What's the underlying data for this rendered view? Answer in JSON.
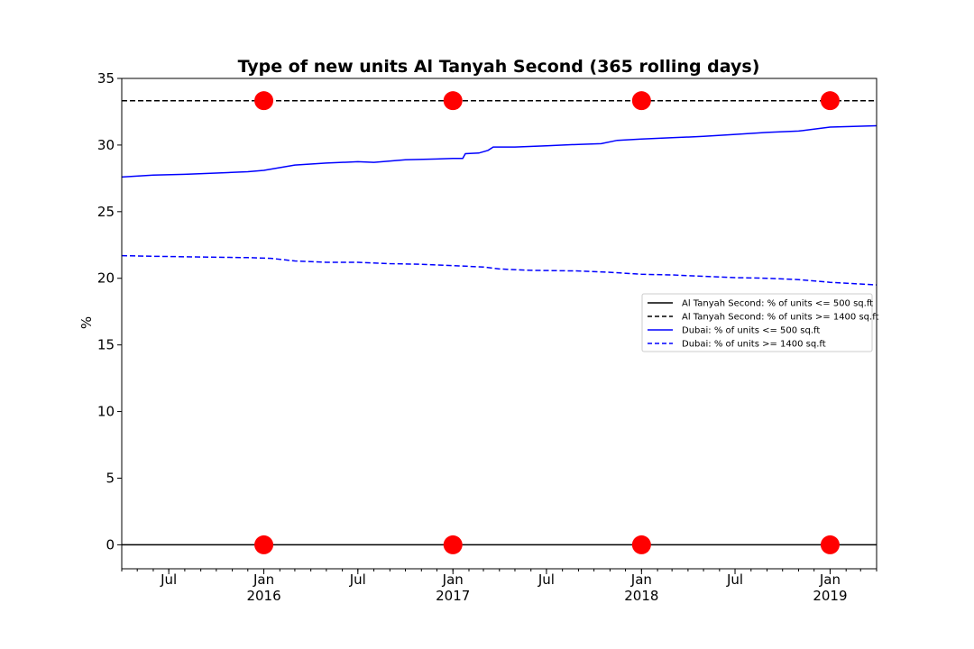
{
  "chart_data": {
    "type": "line",
    "title": "Type of new units Al Tanyah Second (365 rolling days)",
    "xlabel": "",
    "ylabel": "%",
    "ylim": [
      -1.8,
      35
    ],
    "xlim": [
      "2015-04-01",
      "2019-04-01"
    ],
    "yticks": [
      0,
      5,
      10,
      15,
      20,
      25,
      30,
      35
    ],
    "xticks": [
      {
        "date": "2015-07-01",
        "label": "Jul",
        "year": ""
      },
      {
        "date": "2016-01-01",
        "label": "Jan",
        "year": "2016"
      },
      {
        "date": "2016-07-01",
        "label": "Jul",
        "year": ""
      },
      {
        "date": "2017-01-01",
        "label": "Jan",
        "year": "2017"
      },
      {
        "date": "2017-07-01",
        "label": "Jul",
        "year": ""
      },
      {
        "date": "2018-01-01",
        "label": "Jan",
        "year": "2018"
      },
      {
        "date": "2018-07-01",
        "label": "Jul",
        "year": ""
      },
      {
        "date": "2019-01-01",
        "label": "Jan",
        "year": "2019"
      }
    ],
    "grid": false,
    "legend_position": "center-right",
    "series": [
      {
        "name": "Al Tanyah Second: % of units <= 500 sq.ft",
        "color": "#000000",
        "style": "solid",
        "points": [
          [
            "2015-04-01",
            0
          ],
          [
            "2019-04-01",
            0
          ]
        ]
      },
      {
        "name": "Al Tanyah Second: % of units >= 1400 sq.ft",
        "color": "#000000",
        "style": "dashed",
        "points": [
          [
            "2015-04-01",
            33.33
          ],
          [
            "2019-04-01",
            33.33
          ]
        ]
      },
      {
        "name": "Dubai: % of units <= 500 sq.ft",
        "color": "#0000ff",
        "style": "solid",
        "points": [
          [
            "2015-04-01",
            27.6
          ],
          [
            "2015-06-01",
            27.75
          ],
          [
            "2015-08-01",
            27.8
          ],
          [
            "2015-10-01",
            27.9
          ],
          [
            "2015-12-01",
            28.0
          ],
          [
            "2016-01-01",
            28.1
          ],
          [
            "2016-03-01",
            28.5
          ],
          [
            "2016-05-01",
            28.65
          ],
          [
            "2016-07-01",
            28.75
          ],
          [
            "2016-08-01",
            28.7
          ],
          [
            "2016-10-01",
            28.9
          ],
          [
            "2016-12-01",
            28.95
          ],
          [
            "2017-01-01",
            29.0
          ],
          [
            "2017-01-20",
            29.0
          ],
          [
            "2017-01-25",
            29.35
          ],
          [
            "2017-02-20",
            29.4
          ],
          [
            "2017-03-10",
            29.6
          ],
          [
            "2017-03-20",
            29.85
          ],
          [
            "2017-05-01",
            29.85
          ],
          [
            "2017-07-01",
            29.95
          ],
          [
            "2017-09-01",
            30.05
          ],
          [
            "2017-10-15",
            30.1
          ],
          [
            "2017-11-15",
            30.35
          ],
          [
            "2018-01-01",
            30.45
          ],
          [
            "2018-03-01",
            30.55
          ],
          [
            "2018-05-01",
            30.65
          ],
          [
            "2018-07-01",
            30.8
          ],
          [
            "2018-09-01",
            30.95
          ],
          [
            "2018-11-01",
            31.05
          ],
          [
            "2018-12-01",
            31.2
          ],
          [
            "2019-01-01",
            31.35
          ],
          [
            "2019-04-01",
            31.45
          ]
        ]
      },
      {
        "name": "Dubai: % of units >= 1400 sq.ft",
        "color": "#0000ff",
        "style": "dashed",
        "points": [
          [
            "2015-04-01",
            21.7
          ],
          [
            "2015-06-01",
            21.65
          ],
          [
            "2015-09-01",
            21.6
          ],
          [
            "2015-12-01",
            21.55
          ],
          [
            "2016-01-15",
            21.5
          ],
          [
            "2016-03-01",
            21.3
          ],
          [
            "2016-05-01",
            21.2
          ],
          [
            "2016-07-01",
            21.2
          ],
          [
            "2016-09-01",
            21.1
          ],
          [
            "2016-11-01",
            21.05
          ],
          [
            "2017-01-01",
            20.95
          ],
          [
            "2017-03-01",
            20.85
          ],
          [
            "2017-04-01",
            20.7
          ],
          [
            "2017-06-01",
            20.6
          ],
          [
            "2017-09-01",
            20.55
          ],
          [
            "2017-11-01",
            20.45
          ],
          [
            "2018-01-01",
            20.3
          ],
          [
            "2018-03-01",
            20.25
          ],
          [
            "2018-05-01",
            20.15
          ],
          [
            "2018-07-01",
            20.05
          ],
          [
            "2018-09-01",
            20.0
          ],
          [
            "2018-11-01",
            19.9
          ],
          [
            "2019-01-01",
            19.7
          ],
          [
            "2019-04-01",
            19.5
          ]
        ]
      }
    ],
    "markers": {
      "color": "#ff0000",
      "points": [
        [
          "2016-01-01",
          0
        ],
        [
          "2017-01-01",
          0
        ],
        [
          "2018-01-01",
          0
        ],
        [
          "2019-01-01",
          0
        ],
        [
          "2016-01-01",
          33.33
        ],
        [
          "2017-01-01",
          33.33
        ],
        [
          "2018-01-01",
          33.33
        ],
        [
          "2019-01-01",
          33.33
        ]
      ]
    }
  }
}
